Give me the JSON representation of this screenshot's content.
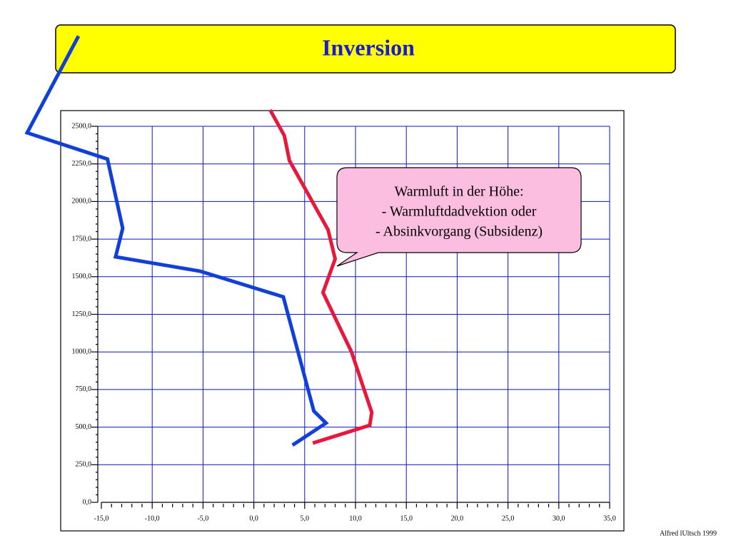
{
  "chart_data": {
    "type": "line",
    "title": "Inversion",
    "series": [
      {
        "color": "#1040d8",
        "x": [
          -17.25,
          -22.3,
          -14.4,
          -12.9,
          -13.6,
          -5.3,
          2.9,
          5.9,
          7.1,
          3.8
        ],
        "values": [
          3100,
          2457,
          2282,
          1822,
          1632,
          1537,
          1366,
          607,
          527,
          380
        ]
      },
      {
        "color": "#e8183c",
        "x": [
          1.6,
          3.0,
          3.5,
          7.3,
          8.0,
          6.8,
          9.6,
          11.6,
          11.4,
          5.8
        ],
        "values": [
          2609,
          2438,
          2272,
          1812,
          1618,
          1395,
          1001,
          598,
          512,
          394
        ]
      }
    ],
    "xlim": [
      -15,
      35
    ],
    "ylim": [
      0,
      2500
    ],
    "xticks": [
      {
        "value": -15,
        "label": "-15,0"
      },
      {
        "value": -10,
        "label": "-10,0"
      },
      {
        "value": -5,
        "label": "-5,0"
      },
      {
        "value": 0,
        "label": "0,0"
      },
      {
        "value": 5,
        "label": "5,0"
      },
      {
        "value": 10,
        "label": "10,0"
      },
      {
        "value": 15,
        "label": "15,0"
      },
      {
        "value": 20,
        "label": "20,0"
      },
      {
        "value": 25,
        "label": "25,0"
      },
      {
        "value": 30,
        "label": "30,0"
      },
      {
        "value": 35,
        "label": "35,0"
      }
    ],
    "yticks": [
      {
        "value": 0,
        "label": "0,0"
      },
      {
        "value": 250,
        "label": "250,0"
      },
      {
        "value": 500,
        "label": "500,0"
      },
      {
        "value": 750,
        "label": "750,0"
      },
      {
        "value": 1000,
        "label": "1000,0"
      },
      {
        "value": 1250,
        "label": "1250,0"
      },
      {
        "value": 1500,
        "label": "1500,0"
      },
      {
        "value": 1750,
        "label": "1750,0"
      },
      {
        "value": 2000,
        "label": "2000,0"
      },
      {
        "value": 2250,
        "label": "2250,0"
      },
      {
        "value": 2500,
        "label": "2500,0"
      }
    ],
    "grid": true,
    "grid_color": "#0a14c8",
    "annotation": [
      "Warmluft in der Höhe:",
      "- Warmluftdadvektion oder",
      "- Absinkvorgang (Subsidenz)"
    ],
    "footer": "Alfred lUltsch 1999"
  }
}
